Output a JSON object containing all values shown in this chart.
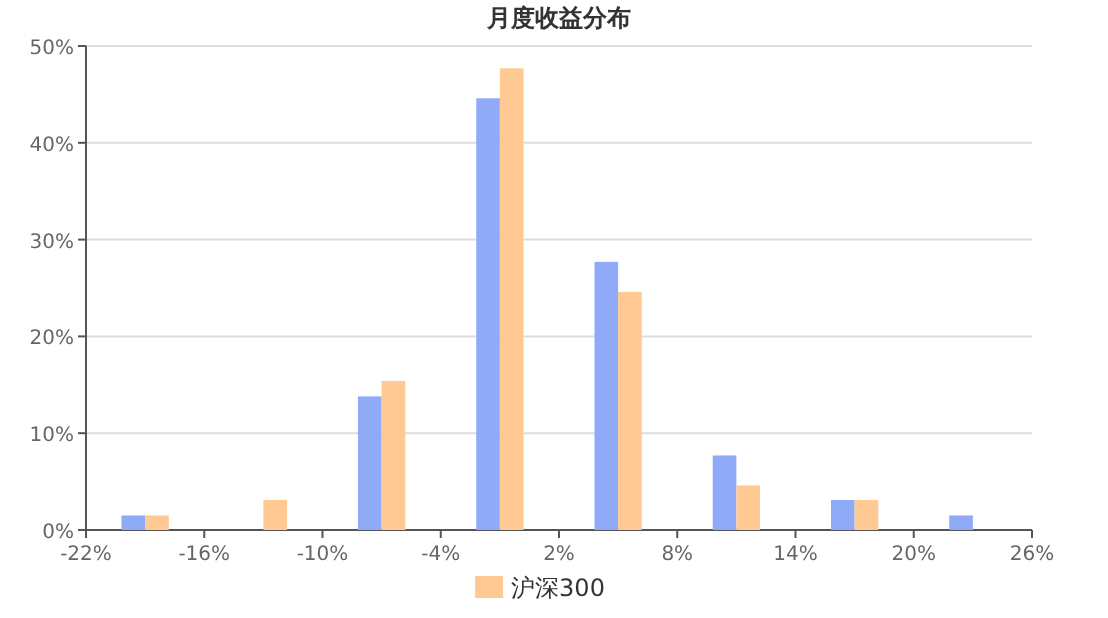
{
  "chart_data": {
    "type": "bar",
    "title": "月度收益分布",
    "x": [
      -19,
      -13,
      -7,
      -1,
      5,
      11,
      17,
      23
    ],
    "series": [
      {
        "color": "#8fabf7",
        "values": [
          1.5,
          0,
          13.8,
          44.6,
          27.7,
          7.7,
          3.1,
          1.5
        ]
      },
      {
        "name": "沪深300",
        "color": "#ffc994",
        "values": [
          1.5,
          3.1,
          15.4,
          47.7,
          24.6,
          4.6,
          3.1,
          0
        ]
      }
    ],
    "xlim": [
      -22,
      26
    ],
    "xticks": [
      {
        "value": -22,
        "label": "-22%"
      },
      {
        "value": -16,
        "label": "-16%"
      },
      {
        "value": -10,
        "label": "-10%"
      },
      {
        "value": -4,
        "label": "-4%"
      },
      {
        "value": 2,
        "label": "2%"
      },
      {
        "value": 8,
        "label": "8%"
      },
      {
        "value": 14,
        "label": "14%"
      },
      {
        "value": 20,
        "label": "20%"
      },
      {
        "value": 26,
        "label": "26%"
      }
    ],
    "ylim": [
      0,
      50
    ],
    "yticks": [
      {
        "value": 0,
        "label": "0%"
      },
      {
        "value": 10,
        "label": "10%"
      },
      {
        "value": 20,
        "label": "20%"
      },
      {
        "value": 30,
        "label": "30%"
      },
      {
        "value": 40,
        "label": "40%"
      },
      {
        "value": 50,
        "label": "50%"
      }
    ],
    "grid": "y",
    "legend": "bottom"
  }
}
